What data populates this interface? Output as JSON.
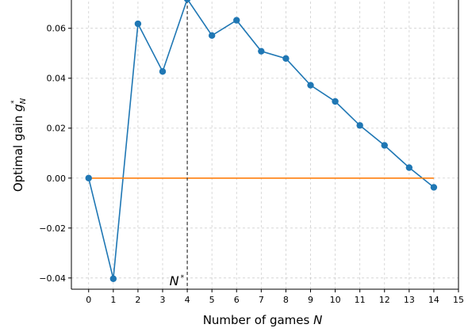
{
  "chart_data": {
    "type": "line",
    "title": "",
    "xlabel_text": "Number of games ",
    "xlabel_var": "N",
    "ylabel_text": "Optimal gain ",
    "ylabel_var": "g",
    "ylabel_sub": "N",
    "ylabel_sup": "*",
    "annotation_text": "N",
    "annotation_sup": "*",
    "xlim": [
      -0.7,
      15
    ],
    "ylim": [
      -0.0445,
      0.0745
    ],
    "xticks": [
      0,
      1,
      2,
      3,
      4,
      5,
      6,
      7,
      8,
      9,
      10,
      11,
      12,
      13,
      14,
      15
    ],
    "xtick_labels": [
      "0",
      "1",
      "2",
      "3",
      "4",
      "5",
      "6",
      "7",
      "8",
      "9",
      "10",
      "11",
      "12",
      "13",
      "14",
      "15"
    ],
    "yticks": [
      -0.04,
      -0.02,
      0.0,
      0.02,
      0.04,
      0.06
    ],
    "ytick_labels": [
      "−0.04",
      "−0.02",
      "0.00",
      "0.02",
      "0.04",
      "0.06"
    ],
    "grid": true,
    "vline_x": 4,
    "series": [
      {
        "x": [
          0,
          1,
          2,
          3,
          4,
          5,
          6,
          7,
          8,
          9,
          10,
          11,
          12,
          13,
          14
        ],
        "values": [
          0.0,
          -0.0403,
          0.0618,
          0.0427,
          0.0717,
          0.0571,
          0.0632,
          0.0508,
          0.0479,
          0.0372,
          0.0307,
          0.0211,
          0.0131,
          0.0042,
          -0.0037
        ],
        "color": "#1f77b4",
        "markers": true
      },
      {
        "x": [
          0,
          14
        ],
        "values": [
          0.0,
          0.0
        ],
        "color": "#ff7f0e",
        "markers": false
      }
    ]
  }
}
